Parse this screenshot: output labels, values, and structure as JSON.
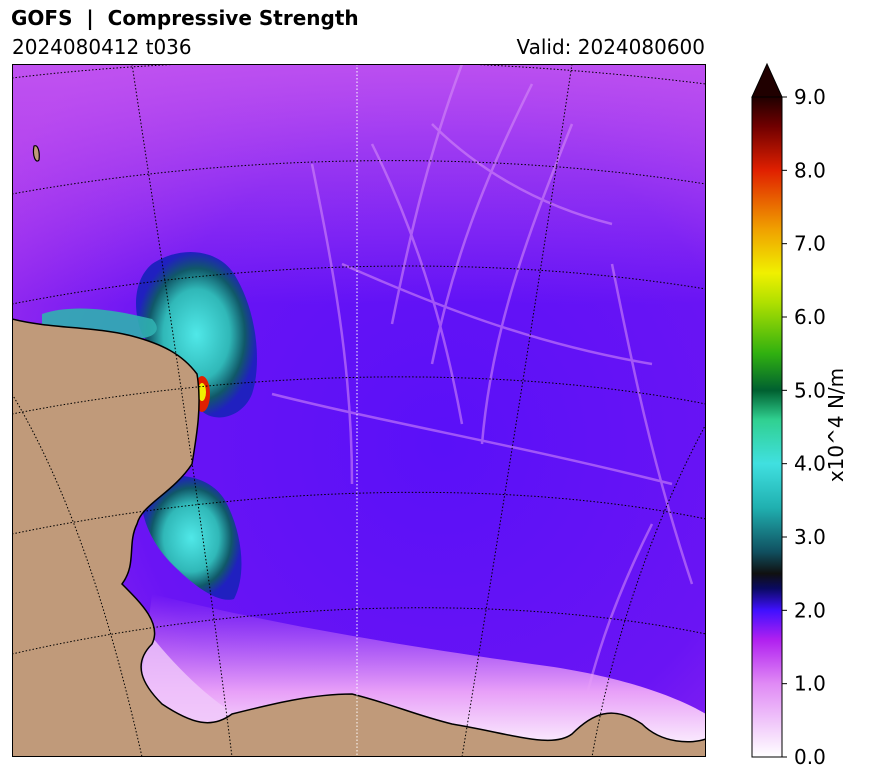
{
  "title": "GOFS  |  Compressive Strength",
  "subtitle_left": "2024080412 t036",
  "subtitle_right": "Valid: 2024080600",
  "colorbar": {
    "label": "x10^4 N/m",
    "min": 0.0,
    "max": 9.0,
    "ticks": [
      "0.0",
      "1.0",
      "2.0",
      "3.0",
      "4.0",
      "5.0",
      "6.0",
      "7.0",
      "8.0",
      "9.0"
    ],
    "extend": "max",
    "stops": [
      {
        "v": 0.0,
        "c": "#ffffff"
      },
      {
        "v": 1.0,
        "c": "#e08af5"
      },
      {
        "v": 1.6,
        "c": "#b020f0"
      },
      {
        "v": 2.0,
        "c": "#4010ff"
      },
      {
        "v": 2.3,
        "c": "#0a0a60"
      },
      {
        "v": 2.5,
        "c": "#101010"
      },
      {
        "v": 2.8,
        "c": "#105060"
      },
      {
        "v": 3.4,
        "c": "#20b0b0"
      },
      {
        "v": 4.0,
        "c": "#40e0e0"
      },
      {
        "v": 4.6,
        "c": "#30d090"
      },
      {
        "v": 5.0,
        "c": "#006030"
      },
      {
        "v": 5.5,
        "c": "#30b010"
      },
      {
        "v": 6.2,
        "c": "#b0e000"
      },
      {
        "v": 6.6,
        "c": "#f0f000"
      },
      {
        "v": 7.2,
        "c": "#f0a000"
      },
      {
        "v": 8.0,
        "c": "#e02000"
      },
      {
        "v": 8.6,
        "c": "#700000"
      },
      {
        "v": 9.0,
        "c": "#200000"
      }
    ]
  },
  "map": {
    "land_color": "#c09a7a",
    "ocean_color": "#7a18f0"
  }
}
